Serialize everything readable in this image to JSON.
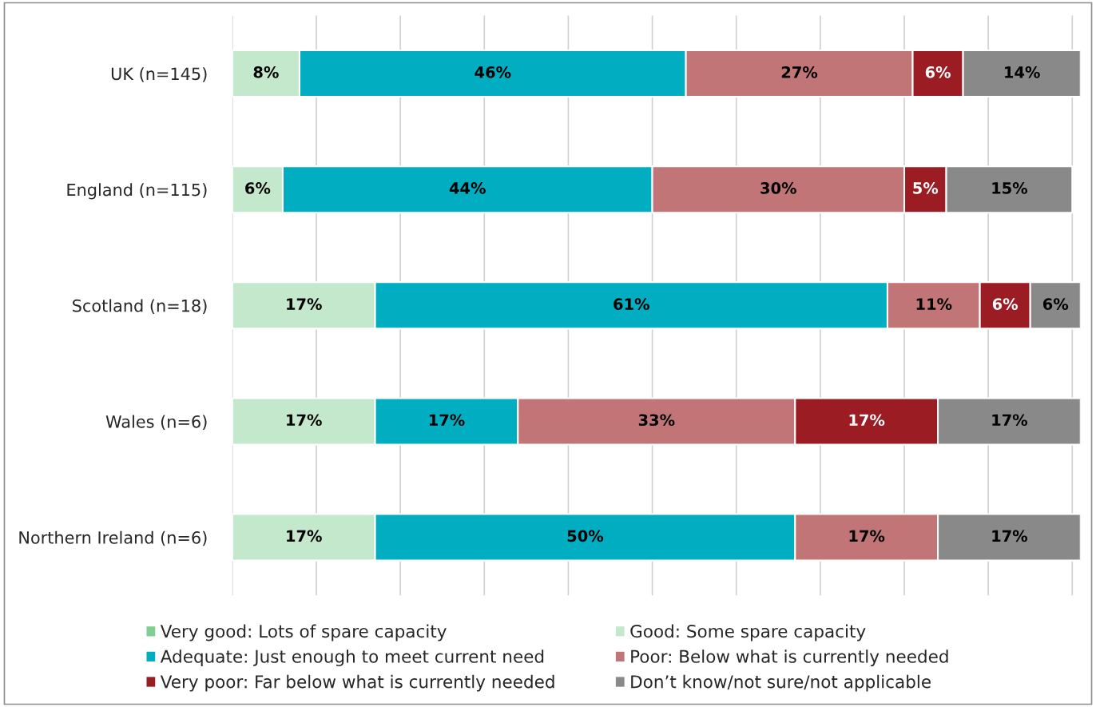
{
  "chart_data": {
    "type": "bar",
    "orientation": "horizontal",
    "stacked": true,
    "categories": [
      "UK (n=145)",
      "England (n=115)",
      "Scotland (n=18)",
      "Wales (n=6)",
      "Northern Ireland (n=6)"
    ],
    "series": [
      {
        "name": "Very good: Lots of spare capacity",
        "color": "#7fcf95",
        "values": [
          null,
          null,
          null,
          null,
          null
        ]
      },
      {
        "name": "Good: Some spare capacity",
        "color": "#c4e8cc",
        "values": [
          8,
          6,
          17,
          17,
          17
        ],
        "value_labels": [
          "8%",
          "6%",
          "17%",
          "17%",
          "17%"
        ]
      },
      {
        "name": "Adequate: Just enough to meet current need",
        "color": "#00adc1",
        "values": [
          46,
          44,
          61,
          17,
          50
        ],
        "value_labels": [
          "46%",
          "44%",
          "61%",
          "17%",
          "50%"
        ]
      },
      {
        "name": "Poor: Below what is currently needed",
        "color": "#c27577",
        "values": [
          27,
          30,
          11,
          33,
          17
        ],
        "value_labels": [
          "27%",
          "30%",
          "11%",
          "33%",
          "17%"
        ]
      },
      {
        "name": "Very poor: Far below what is currently needed",
        "color": "#9b1c22",
        "values": [
          6,
          5,
          6,
          17,
          null
        ],
        "value_labels": [
          "6%",
          "5%",
          "6%",
          "17%",
          null
        ]
      },
      {
        "name": "Don’t know/not sure/not applicable",
        "color": "#898989",
        "values": [
          14,
          15,
          6,
          17,
          17
        ],
        "value_labels": [
          "14%",
          "15%",
          "6%",
          "17%",
          "17%"
        ]
      }
    ],
    "xlim": [
      0,
      101
    ],
    "xticks": [
      {
        "value": 0,
        "label": null
      },
      {
        "value": 10,
        "label": null
      },
      {
        "value": 20,
        "label": null
      },
      {
        "value": 30,
        "label": null
      },
      {
        "value": 40,
        "label": null
      },
      {
        "value": 50,
        "label": null
      },
      {
        "value": 60,
        "label": null
      },
      {
        "value": 70,
        "label": null
      },
      {
        "value": 80,
        "label": null
      },
      {
        "value": 90,
        "label": null
      },
      {
        "value": 100,
        "label": null
      }
    ],
    "tick_labels": "y",
    "grid": "x",
    "legend": "bottom"
  }
}
